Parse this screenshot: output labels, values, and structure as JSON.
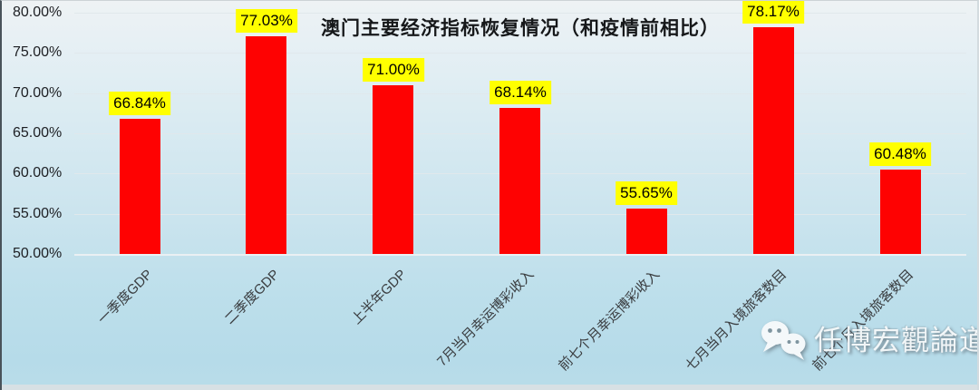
{
  "chart_data": {
    "type": "bar",
    "title": "澳门主要经济指标恢复情况（和疫情前相比）",
    "categories": [
      "一季度GDP",
      "二季度GDP",
      "上半年GDP",
      "7月当月幸运博彩收入",
      "前七个月幸运博彩收入",
      "七月当月入境旅客数目",
      "前七个月入境旅客数目"
    ],
    "values": [
      66.84,
      77.03,
      71.0,
      68.14,
      55.65,
      78.17,
      60.48
    ],
    "data_labels": [
      "66.84%",
      "77.03%",
      "71.00%",
      "68.14%",
      "55.65%",
      "78.17%",
      "60.48%"
    ],
    "y_ticks": [
      "80.00%",
      "75.00%",
      "70.00%",
      "65.00%",
      "60.00%",
      "55.00%",
      "50.00%"
    ],
    "tick_values": [
      80,
      75,
      70,
      65,
      60,
      55,
      50
    ],
    "ylim": [
      50,
      80
    ],
    "xlabel": "",
    "ylabel": "",
    "grid": true,
    "legend_position": "none",
    "bar_color": "#fe0202",
    "data_label_bg": "#ffff00",
    "data_label_text_color": "#000000",
    "background_style": "light-blue vertical gradient"
  },
  "watermark": {
    "text": "任博宏觀論道",
    "icon": "wechat-icon"
  }
}
